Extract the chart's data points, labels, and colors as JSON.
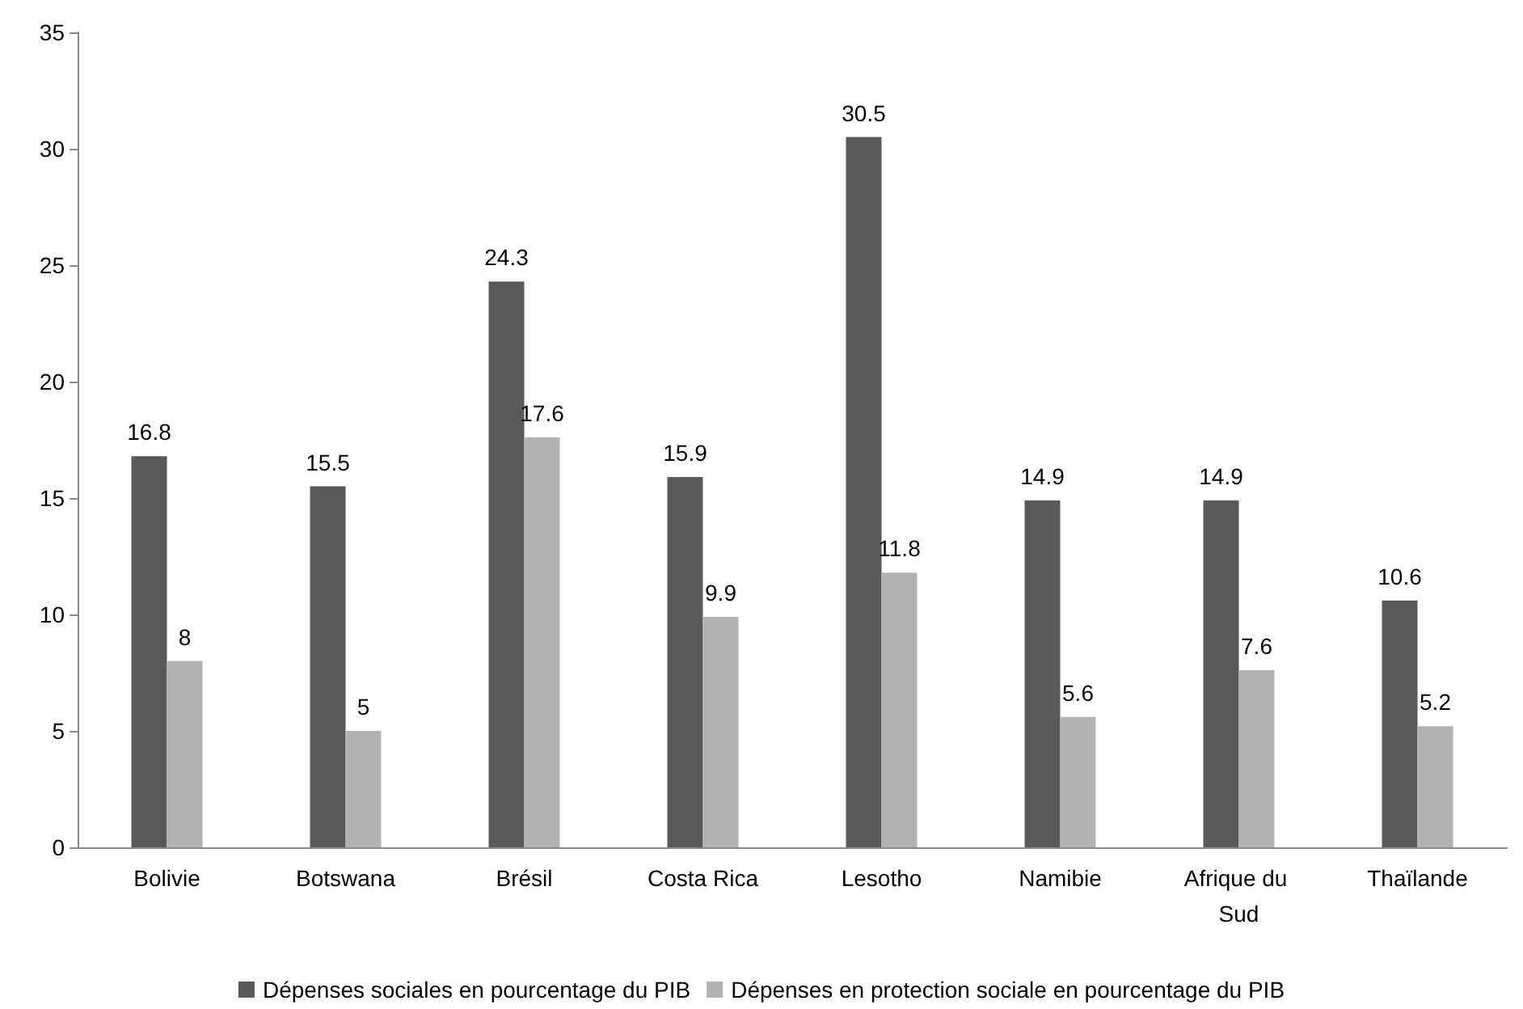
{
  "chart_data": {
    "type": "bar",
    "categories": [
      "Bolivie",
      "Botswana",
      "Brésil",
      "Costa Rica",
      "Lesotho",
      "Namibie",
      "Afrique du Sud",
      "Thaïlande"
    ],
    "series": [
      {
        "name": "Dépenses sociales en pourcentage du PIB",
        "color": "#595959",
        "values": [
          16.8,
          15.5,
          24.3,
          15.9,
          30.5,
          14.9,
          14.9,
          10.6
        ]
      },
      {
        "name": "Dépenses en protection sociale en pourcentage du PIB",
        "color": "#b3b3b3",
        "values": [
          8,
          5,
          17.6,
          9.9,
          11.8,
          5.6,
          7.6,
          5.2
        ]
      }
    ],
    "ylim": [
      0,
      35
    ],
    "yticks": [
      0,
      5,
      10,
      15,
      20,
      25,
      30,
      35
    ],
    "grid": false,
    "legend": "bottom",
    "data_labels": true
  }
}
